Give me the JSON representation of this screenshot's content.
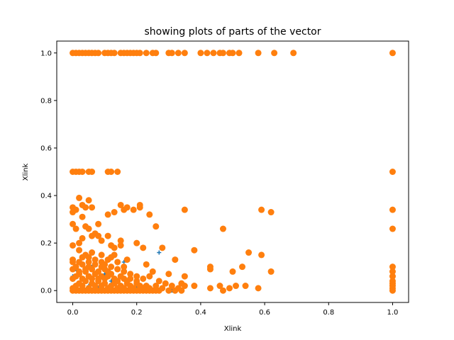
{
  "chart_data": {
    "type": "scatter",
    "title": "showing plots of parts of the vector",
    "xlabel": "Xlink",
    "ylabel": "Xlink",
    "xlim": [
      -0.05,
      1.05
    ],
    "ylim": [
      -0.05,
      1.05
    ],
    "xticks": [
      "0.0",
      "0.2",
      "0.4",
      "0.6",
      "0.8",
      "1.0"
    ],
    "yticks": [
      "0.0",
      "0.2",
      "0.4",
      "0.6",
      "0.8",
      "1.0"
    ],
    "grid": false,
    "series": [
      {
        "marker": "plus",
        "color": "#1f77b4",
        "points": [
          [
            0.0,
            0.06
          ],
          [
            0.01,
            0.09
          ],
          [
            0.03,
            0.05
          ],
          [
            0.06,
            0.1
          ],
          [
            0.1,
            0.07
          ],
          [
            0.16,
            0.12
          ],
          [
            0.27,
            0.16
          ],
          [
            0.31,
            0.0
          ],
          [
            0.12,
            0.04
          ],
          [
            0.2,
            0.02
          ],
          [
            0.05,
            0.02
          ],
          [
            0.08,
            0.01
          ]
        ]
      },
      {
        "marker": "circle",
        "color": "#ff7f0e",
        "points": [
          [
            0.0,
            1.0
          ],
          [
            0.01,
            1.0
          ],
          [
            0.02,
            1.0
          ],
          [
            0.03,
            1.0
          ],
          [
            0.04,
            1.0
          ],
          [
            0.05,
            1.0
          ],
          [
            0.06,
            1.0
          ],
          [
            0.07,
            1.0
          ],
          [
            0.08,
            1.0
          ],
          [
            0.1,
            1.0
          ],
          [
            0.11,
            1.0
          ],
          [
            0.12,
            1.0
          ],
          [
            0.13,
            1.0
          ],
          [
            0.15,
            1.0
          ],
          [
            0.16,
            1.0
          ],
          [
            0.17,
            1.0
          ],
          [
            0.18,
            1.0
          ],
          [
            0.19,
            1.0
          ],
          [
            0.2,
            1.0
          ],
          [
            0.21,
            1.0
          ],
          [
            0.23,
            1.0
          ],
          [
            0.25,
            1.0
          ],
          [
            0.26,
            1.0
          ],
          [
            0.3,
            1.0
          ],
          [
            0.31,
            1.0
          ],
          [
            0.33,
            1.0
          ],
          [
            0.35,
            1.0
          ],
          [
            0.4,
            1.0
          ],
          [
            0.42,
            1.0
          ],
          [
            0.44,
            1.0
          ],
          [
            0.46,
            1.0
          ],
          [
            0.47,
            1.0
          ],
          [
            0.49,
            1.0
          ],
          [
            0.5,
            1.0
          ],
          [
            0.52,
            1.0
          ],
          [
            0.58,
            1.0
          ],
          [
            0.63,
            1.0
          ],
          [
            0.69,
            1.0
          ],
          [
            1.0,
            1.0
          ],
          [
            0.0,
            0.5
          ],
          [
            0.01,
            0.5
          ],
          [
            0.02,
            0.5
          ],
          [
            0.03,
            0.5
          ],
          [
            0.05,
            0.5
          ],
          [
            0.06,
            0.5
          ],
          [
            0.11,
            0.5
          ],
          [
            0.12,
            0.5
          ],
          [
            0.14,
            0.5
          ],
          [
            1.0,
            0.5
          ],
          [
            0.0,
            0.35
          ],
          [
            0.01,
            0.34
          ],
          [
            0.02,
            0.39
          ],
          [
            0.03,
            0.36
          ],
          [
            0.03,
            0.31
          ],
          [
            0.04,
            0.35
          ],
          [
            0.05,
            0.38
          ],
          [
            0.06,
            0.35
          ],
          [
            0.0,
            0.33
          ],
          [
            0.0,
            0.28
          ],
          [
            0.01,
            0.26
          ],
          [
            0.04,
            0.27
          ],
          [
            0.05,
            0.26
          ],
          [
            0.06,
            0.23
          ],
          [
            0.07,
            0.24
          ],
          [
            0.08,
            0.28
          ],
          [
            0.08,
            0.23
          ],
          [
            0.11,
            0.32
          ],
          [
            0.11,
            0.23
          ],
          [
            0.13,
            0.33
          ],
          [
            0.15,
            0.36
          ],
          [
            0.16,
            0.34
          ],
          [
            0.17,
            0.35
          ],
          [
            0.19,
            0.34
          ],
          [
            0.21,
            0.35
          ],
          [
            0.21,
            0.36
          ],
          [
            0.24,
            0.32
          ],
          [
            0.26,
            0.27
          ],
          [
            0.35,
            0.34
          ],
          [
            0.47,
            0.26
          ],
          [
            0.59,
            0.34
          ],
          [
            0.62,
            0.33
          ],
          [
            1.0,
            0.34
          ],
          [
            0.0,
            0.19
          ],
          [
            0.03,
            0.22
          ],
          [
            0.02,
            0.2
          ],
          [
            0.09,
            0.21
          ],
          [
            0.12,
            0.19
          ],
          [
            0.13,
            0.18
          ],
          [
            0.15,
            0.19
          ],
          [
            0.15,
            0.21
          ],
          [
            0.2,
            0.2
          ],
          [
            0.22,
            0.18
          ],
          [
            0.38,
            0.17
          ],
          [
            0.28,
            0.18
          ],
          [
            0.13,
            0.15
          ],
          [
            0.04,
            0.15
          ],
          [
            0.02,
            0.17
          ],
          [
            0.06,
            0.16
          ],
          [
            0.17,
            0.13
          ],
          [
            0.32,
            0.13
          ],
          [
            0.55,
            0.16
          ],
          [
            0.59,
            0.15
          ],
          [
            1.0,
            0.26
          ],
          [
            0.12,
            0.14
          ],
          [
            0.05,
            0.14
          ],
          [
            0.0,
            0.12
          ],
          [
            0.09,
            0.12
          ],
          [
            0.14,
            0.12
          ],
          [
            0.23,
            0.11
          ],
          [
            0.25,
            0.08
          ],
          [
            0.3,
            0.07
          ],
          [
            0.35,
            0.06
          ],
          [
            0.43,
            0.1
          ],
          [
            0.43,
            0.09
          ],
          [
            0.5,
            0.08
          ],
          [
            0.53,
            0.1
          ],
          [
            0.62,
            0.08
          ],
          [
            1.0,
            0.1
          ],
          [
            1.0,
            0.08
          ],
          [
            1.0,
            0.06
          ],
          [
            1.0,
            0.04
          ],
          [
            1.0,
            0.03
          ],
          [
            1.0,
            0.02
          ],
          [
            1.0,
            0.01
          ],
          [
            1.0,
            0.0
          ],
          [
            0.0,
            0.0
          ],
          [
            0.01,
            0.0
          ],
          [
            0.02,
            0.0
          ],
          [
            0.03,
            0.0
          ],
          [
            0.04,
            0.0
          ],
          [
            0.05,
            0.0
          ],
          [
            0.06,
            0.0
          ],
          [
            0.07,
            0.0
          ],
          [
            0.08,
            0.0
          ],
          [
            0.09,
            0.0
          ],
          [
            0.1,
            0.0
          ],
          [
            0.11,
            0.0
          ],
          [
            0.12,
            0.0
          ],
          [
            0.13,
            0.0
          ],
          [
            0.14,
            0.0
          ],
          [
            0.15,
            0.0
          ],
          [
            0.16,
            0.0
          ],
          [
            0.17,
            0.0
          ],
          [
            0.18,
            0.0
          ],
          [
            0.19,
            0.0
          ],
          [
            0.2,
            0.0
          ],
          [
            0.21,
            0.0
          ],
          [
            0.22,
            0.0
          ],
          [
            0.23,
            0.0
          ],
          [
            0.24,
            0.0
          ],
          [
            0.25,
            0.0
          ],
          [
            0.26,
            0.0
          ],
          [
            0.27,
            0.0
          ],
          [
            0.3,
            0.0
          ],
          [
            0.32,
            0.0
          ],
          [
            0.34,
            0.0
          ],
          [
            0.47,
            0.0
          ],
          [
            0.0,
            0.01
          ],
          [
            0.01,
            0.02
          ],
          [
            0.02,
            0.03
          ],
          [
            0.03,
            0.02
          ],
          [
            0.04,
            0.04
          ],
          [
            0.05,
            0.01
          ],
          [
            0.06,
            0.03
          ],
          [
            0.07,
            0.02
          ],
          [
            0.08,
            0.04
          ],
          [
            0.09,
            0.02
          ],
          [
            0.1,
            0.03
          ],
          [
            0.11,
            0.01
          ],
          [
            0.12,
            0.02
          ],
          [
            0.13,
            0.03
          ],
          [
            0.14,
            0.01
          ],
          [
            0.15,
            0.02
          ],
          [
            0.16,
            0.01
          ],
          [
            0.17,
            0.03
          ],
          [
            0.18,
            0.02
          ],
          [
            0.19,
            0.01
          ],
          [
            0.2,
            0.03
          ],
          [
            0.21,
            0.02
          ],
          [
            0.22,
            0.01
          ],
          [
            0.23,
            0.02
          ],
          [
            0.24,
            0.01
          ],
          [
            0.26,
            0.02
          ],
          [
            0.28,
            0.01
          ],
          [
            0.31,
            0.02
          ],
          [
            0.33,
            0.01
          ],
          [
            0.35,
            0.02
          ],
          [
            0.38,
            0.02
          ],
          [
            0.43,
            0.01
          ],
          [
            0.46,
            0.02
          ],
          [
            0.49,
            0.01
          ],
          [
            0.51,
            0.02
          ],
          [
            0.54,
            0.02
          ],
          [
            0.58,
            0.01
          ],
          [
            0.0,
            0.05
          ],
          [
            0.01,
            0.06
          ],
          [
            0.02,
            0.07
          ],
          [
            0.03,
            0.05
          ],
          [
            0.04,
            0.08
          ],
          [
            0.05,
            0.06
          ],
          [
            0.06,
            0.05
          ],
          [
            0.07,
            0.07
          ],
          [
            0.08,
            0.05
          ],
          [
            0.09,
            0.06
          ],
          [
            0.1,
            0.05
          ],
          [
            0.11,
            0.06
          ],
          [
            0.12,
            0.07
          ],
          [
            0.13,
            0.05
          ],
          [
            0.14,
            0.04
          ],
          [
            0.15,
            0.06
          ],
          [
            0.16,
            0.05
          ],
          [
            0.17,
            0.04
          ],
          [
            0.18,
            0.05
          ],
          [
            0.2,
            0.04
          ],
          [
            0.22,
            0.05
          ],
          [
            0.24,
            0.06
          ],
          [
            0.27,
            0.04
          ],
          [
            0.29,
            0.03
          ],
          [
            0.34,
            0.03
          ],
          [
            0.0,
            0.09
          ],
          [
            0.01,
            0.1
          ],
          [
            0.02,
            0.08
          ],
          [
            0.03,
            0.11
          ],
          [
            0.04,
            0.09
          ],
          [
            0.05,
            0.1
          ],
          [
            0.06,
            0.09
          ],
          [
            0.07,
            0.11
          ],
          [
            0.08,
            0.08
          ],
          [
            0.09,
            0.1
          ],
          [
            0.1,
            0.09
          ],
          [
            0.11,
            0.08
          ],
          [
            0.12,
            0.1
          ],
          [
            0.14,
            0.09
          ],
          [
            0.16,
            0.08
          ],
          [
            0.18,
            0.07
          ],
          [
            0.2,
            0.06
          ],
          [
            0.0,
            0.13
          ],
          [
            0.02,
            0.12
          ],
          [
            0.03,
            0.14
          ],
          [
            0.05,
            0.12
          ],
          [
            0.07,
            0.13
          ],
          [
            0.09,
            0.15
          ],
          [
            0.1,
            0.11
          ],
          [
            0.11,
            0.13
          ],
          [
            0.16,
            0.1
          ]
        ]
      }
    ]
  }
}
